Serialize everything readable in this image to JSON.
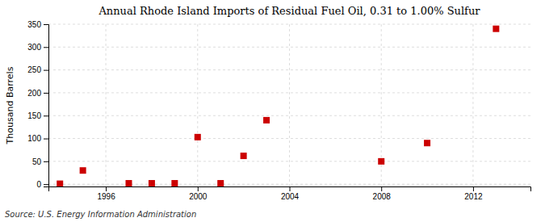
{
  "chart_data": {
    "type": "scatter",
    "title": "Annual Rhode Island Imports of Residual Fuel Oil, 0.31 to 1.00% Sulfur",
    "ylabel": "Thousand Barrels",
    "annotation": "Source: U.S. Energy Information Administration",
    "x": [
      1994,
      1995,
      1997,
      1998,
      1999,
      2000,
      2001,
      2002,
      2003,
      2008,
      2010,
      2013
    ],
    "values": [
      1,
      30,
      2,
      2,
      2,
      103,
      2,
      62,
      140,
      50,
      90,
      340
    ],
    "color": "#cc0000",
    "marker": "square",
    "xlim": [
      1993.5,
      2014.5
    ],
    "ylim": [
      -5,
      350
    ],
    "xticks": [
      1996,
      2000,
      2004,
      2008,
      2012
    ],
    "yticks": [
      0,
      50,
      100,
      150,
      200,
      250,
      300,
      350
    ],
    "grid": true
  }
}
